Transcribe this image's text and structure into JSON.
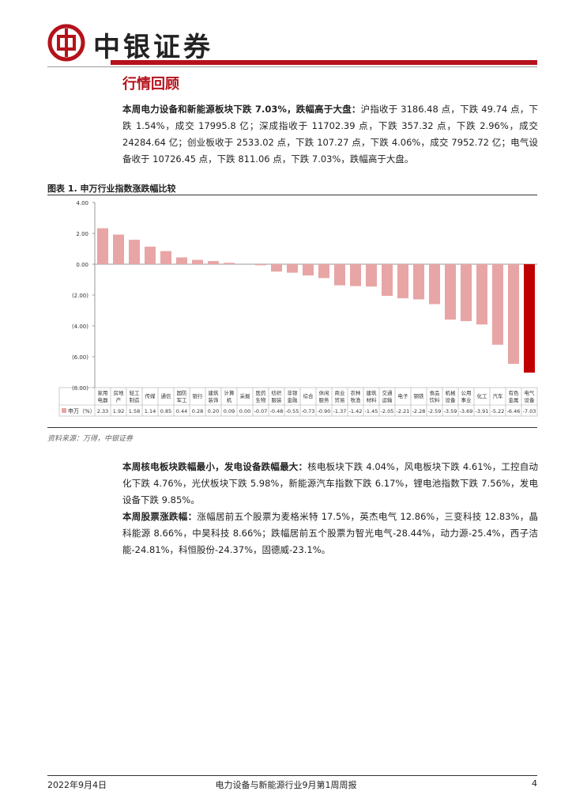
{
  "header": {
    "brand": "中银证券",
    "section": "行情回顾"
  },
  "paragraphs": [
    {
      "lead": "本周电力设备和新能源板块下跌 7.03%，跌幅高于大盘：",
      "text": "沪指收于 3186.48 点，下跌 49.74 点，下跌 1.54%，成交 17995.8 亿；深成指收于 11702.39 点，下跌 357.32 点，下跌 2.96%，成交 24284.64 亿；创业板收于 2533.02 点，下跌 107.27 点，下跌 4.06%，成交 7952.72 亿；电气设备收于 10726.45 点，下跌 811.06 点，下跌 7.03%，跌幅高于大盘。"
    },
    {
      "lead": "本周核电板块跌幅最小，发电设备跌幅最大：",
      "text": "核电板块下跌 4.04%，风电板块下跌 4.61%，工控自动化下跌 4.76%，光伏板块下跌 5.98%，新能源汽车指数下跌 6.17%，锂电池指数下跌 7.56%，发电设备下跌 9.85%。"
    },
    {
      "lead": "本周股票涨跌幅：",
      "text": "涨幅居前五个股票为麦格米特 17.5%，英杰电气 12.86%，三变科技 12.83%，晶科能源 8.66%，中昊科技 8.66%；跌幅居前五个股票为智光电气-28.44%，动力源-25.4%，西子洁能-24.81%，科恒股份-24.37%，固德威-23.1%。"
    }
  ],
  "figure": {
    "caption": "图表 1. 申万行业指数涨跌幅比较",
    "source": "资料来源：万得，中银证券"
  },
  "chart_data": {
    "type": "bar",
    "categories": [
      "家用电器",
      "房地产",
      "轻工制造",
      "传媒",
      "通信",
      "国防军工",
      "银行",
      "建筑装饰",
      "计算机",
      "采掘",
      "医药生物",
      "纺织服装",
      "非银金融",
      "综合",
      "休闲服务",
      "商业贸易",
      "农林牧渔",
      "建筑材料",
      "交通运输",
      "电子",
      "钢铁",
      "食品饮料",
      "机械设备",
      "公用事业",
      "化工",
      "汽车",
      "有色金属",
      "电气设备"
    ],
    "series": [
      {
        "name": "申万（%）",
        "values": [
          2.33,
          1.92,
          1.58,
          1.14,
          0.85,
          0.44,
          0.28,
          0.2,
          0.09,
          0,
          -0.07,
          -0.48,
          -0.55,
          -0.73,
          -0.9,
          -1.37,
          -1.42,
          -1.45,
          -2.05,
          -2.21,
          -2.28,
          -2.59,
          -3.59,
          -3.69,
          -3.91,
          -5.22,
          -6.46,
          -7.03
        ],
        "value_labels": [
          "2.33",
          "1.92",
          "1.58",
          "1.14",
          "0.85",
          "0.44",
          "0.28",
          "0.20",
          "0.09",
          "0.00",
          "-0.07",
          "-0.48",
          "-0.55",
          "-0.73",
          "-0.90",
          "-1.37",
          "-1.42",
          "-1.45",
          "-2.05",
          "-2.21",
          "-2.28",
          "-2.59",
          "-3.59",
          "-3.69",
          "-3.91",
          "-5.22",
          "-6.46",
          "-7.03"
        ],
        "colors": [
          "#e8a5a5",
          "#e8a5a5",
          "#e8a5a5",
          "#e8a5a5",
          "#e8a5a5",
          "#e8a5a5",
          "#e8a5a5",
          "#e8a5a5",
          "#e8a5a5",
          "#e8a5a5",
          "#e8a5a5",
          "#e8a5a5",
          "#e8a5a5",
          "#e8a5a5",
          "#e8a5a5",
          "#e8a5a5",
          "#e8a5a5",
          "#e8a5a5",
          "#e8a5a5",
          "#e8a5a5",
          "#e8a5a5",
          "#e8a5a5",
          "#e8a5a5",
          "#e8a5a5",
          "#e8a5a5",
          "#e8a5a5",
          "#e8a5a5",
          "#c00000"
        ]
      }
    ],
    "ylim": [
      -8,
      4
    ],
    "yticks": [
      {
        "value": 4,
        "label": "4.00"
      },
      {
        "value": 2,
        "label": "2.00"
      },
      {
        "value": 0,
        "label": "0.00"
      },
      {
        "value": -2,
        "label": "(2.00)"
      },
      {
        "value": -4,
        "label": "(4.00)"
      },
      {
        "value": -6,
        "label": "(6.00)"
      },
      {
        "value": -8,
        "label": "(8.00)"
      }
    ],
    "grid": false
  },
  "footer": {
    "date": "2022年9月4日",
    "title": "电力设备与新能源行业9月第1周周报",
    "page": "4"
  }
}
